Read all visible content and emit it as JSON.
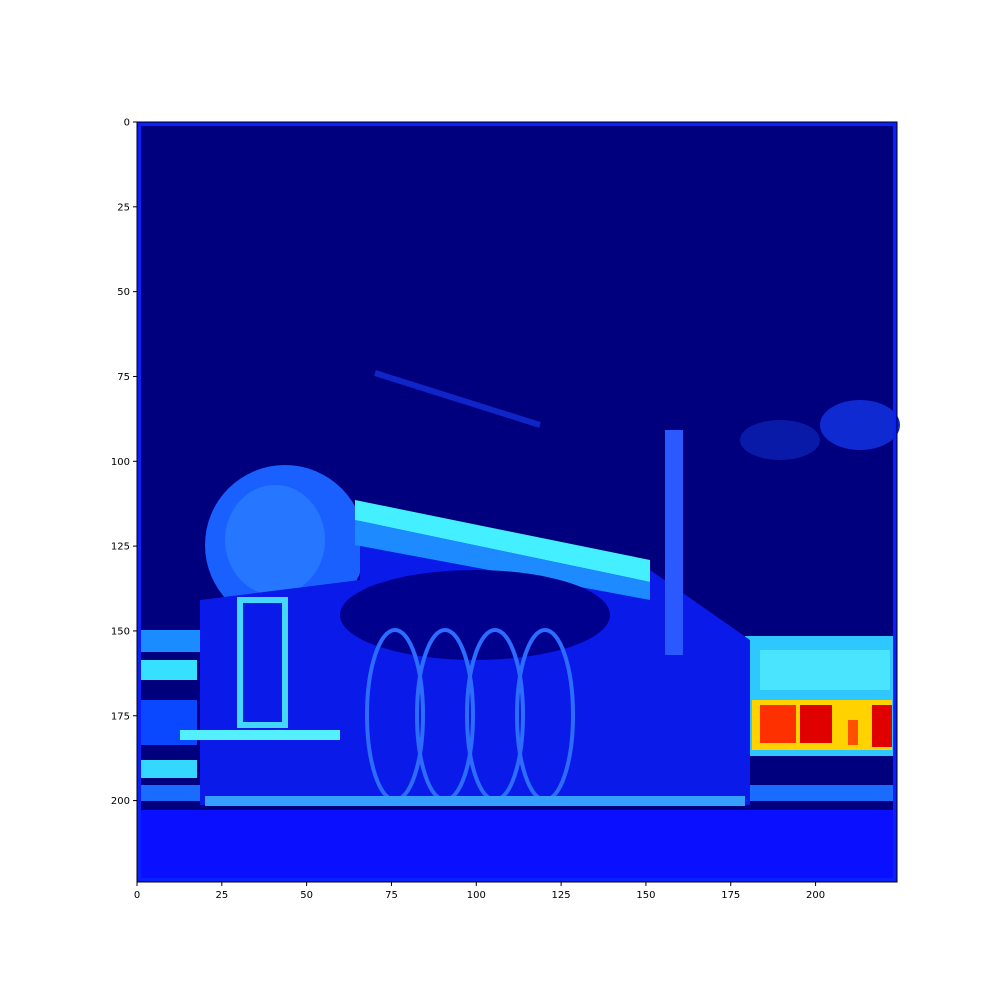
{
  "chart_data": {
    "type": "heatmap",
    "title": "",
    "xlabel": "",
    "ylabel": "",
    "xlim": [
      0,
      224
    ],
    "ylim": [
      224,
      0
    ],
    "image_size": [
      224,
      224
    ],
    "colormap": "jet",
    "grid": false,
    "x_ticks": [
      0,
      25,
      50,
      75,
      100,
      125,
      150,
      175,
      200
    ],
    "y_ticks": [
      0,
      25,
      50,
      75,
      100,
      125,
      150,
      175,
      200
    ],
    "x_tick_labels": [
      "0",
      "25",
      "50",
      "75",
      "100",
      "125",
      "150",
      "175",
      "200"
    ],
    "y_tick_labels": [
      "0",
      "25",
      "50",
      "75",
      "100",
      "125",
      "150",
      "175",
      "200"
    ],
    "colors": {
      "low": "#00007f",
      "mid_low": "#0000ff",
      "mid": "#1f8fff",
      "mid_high": "#33e8ff",
      "high": "#ffff00",
      "peak": "#e00000"
    },
    "regions": [
      {
        "name": "background",
        "level": 0.02
      },
      {
        "name": "ground-band",
        "level": 0.3
      },
      {
        "name": "locomotive-body",
        "level": 0.2
      },
      {
        "name": "boiler-highlight",
        "level": 0.55
      },
      {
        "name": "smoke-cloud",
        "level": 0.35
      },
      {
        "name": "right-stripe",
        "level": 0.6
      },
      {
        "name": "right-hot-spot",
        "level": 0.95
      }
    ]
  }
}
